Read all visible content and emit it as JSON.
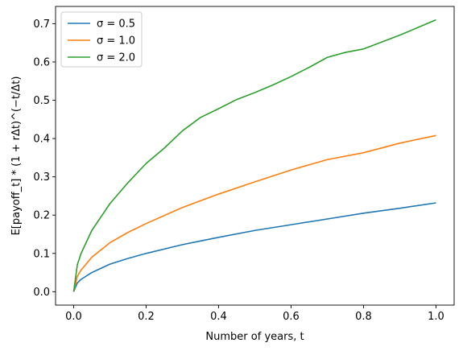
{
  "chart_data": {
    "type": "line",
    "title": "",
    "xlabel": "Number of years, t",
    "ylabel": "E[payoff_t] * (1 + rΔt)^(−t/Δt)",
    "xlim": [
      -0.05,
      1.05
    ],
    "ylim": [
      -0.035,
      0.745
    ],
    "xticks": [
      0.0,
      0.2,
      0.4,
      0.6,
      0.8,
      1.0
    ],
    "xtick_labels": [
      "0.0",
      "0.2",
      "0.4",
      "0.6",
      "0.8",
      "1.0"
    ],
    "yticks": [
      0.0,
      0.1,
      0.2,
      0.3,
      0.4,
      0.5,
      0.6,
      0.7
    ],
    "ytick_labels": [
      "0.0",
      "0.1",
      "0.2",
      "0.3",
      "0.4",
      "0.5",
      "0.6",
      "0.7"
    ],
    "grid": false,
    "legend_position": "top-left",
    "series": [
      {
        "name": "σ = 0.5",
        "color": "#1f77b4",
        "x": [
          0,
          0.01,
          0.02,
          0.05,
          0.1,
          0.15,
          0.2,
          0.3,
          0.4,
          0.5,
          0.6,
          0.7,
          0.8,
          0.9,
          1.0
        ],
        "values": [
          0,
          0.023,
          0.032,
          0.05,
          0.072,
          0.087,
          0.1,
          0.123,
          0.142,
          0.16,
          0.175,
          0.19,
          0.205,
          0.218,
          0.232
        ]
      },
      {
        "name": "σ = 1.0",
        "color": "#ff7f0e",
        "x": [
          0,
          0.01,
          0.02,
          0.05,
          0.1,
          0.15,
          0.2,
          0.3,
          0.4,
          0.5,
          0.6,
          0.7,
          0.8,
          0.9,
          1.0
        ],
        "values": [
          0,
          0.04,
          0.056,
          0.09,
          0.128,
          0.155,
          0.178,
          0.22,
          0.255,
          0.287,
          0.318,
          0.345,
          0.363,
          0.388,
          0.408
        ]
      },
      {
        "name": "σ = 2.0",
        "color": "#2ca02c",
        "x": [
          0,
          0.01,
          0.02,
          0.05,
          0.1,
          0.15,
          0.2,
          0.25,
          0.3,
          0.35,
          0.4,
          0.45,
          0.5,
          0.55,
          0.6,
          0.65,
          0.7,
          0.75,
          0.8,
          0.85,
          0.9,
          0.95,
          1.0
        ],
        "values": [
          0,
          0.07,
          0.099,
          0.16,
          0.23,
          0.285,
          0.335,
          0.375,
          0.42,
          0.455,
          0.478,
          0.502,
          0.52,
          0.54,
          0.562,
          0.586,
          0.612,
          0.625,
          0.634,
          0.652,
          0.67,
          0.69,
          0.71
        ]
      }
    ]
  }
}
